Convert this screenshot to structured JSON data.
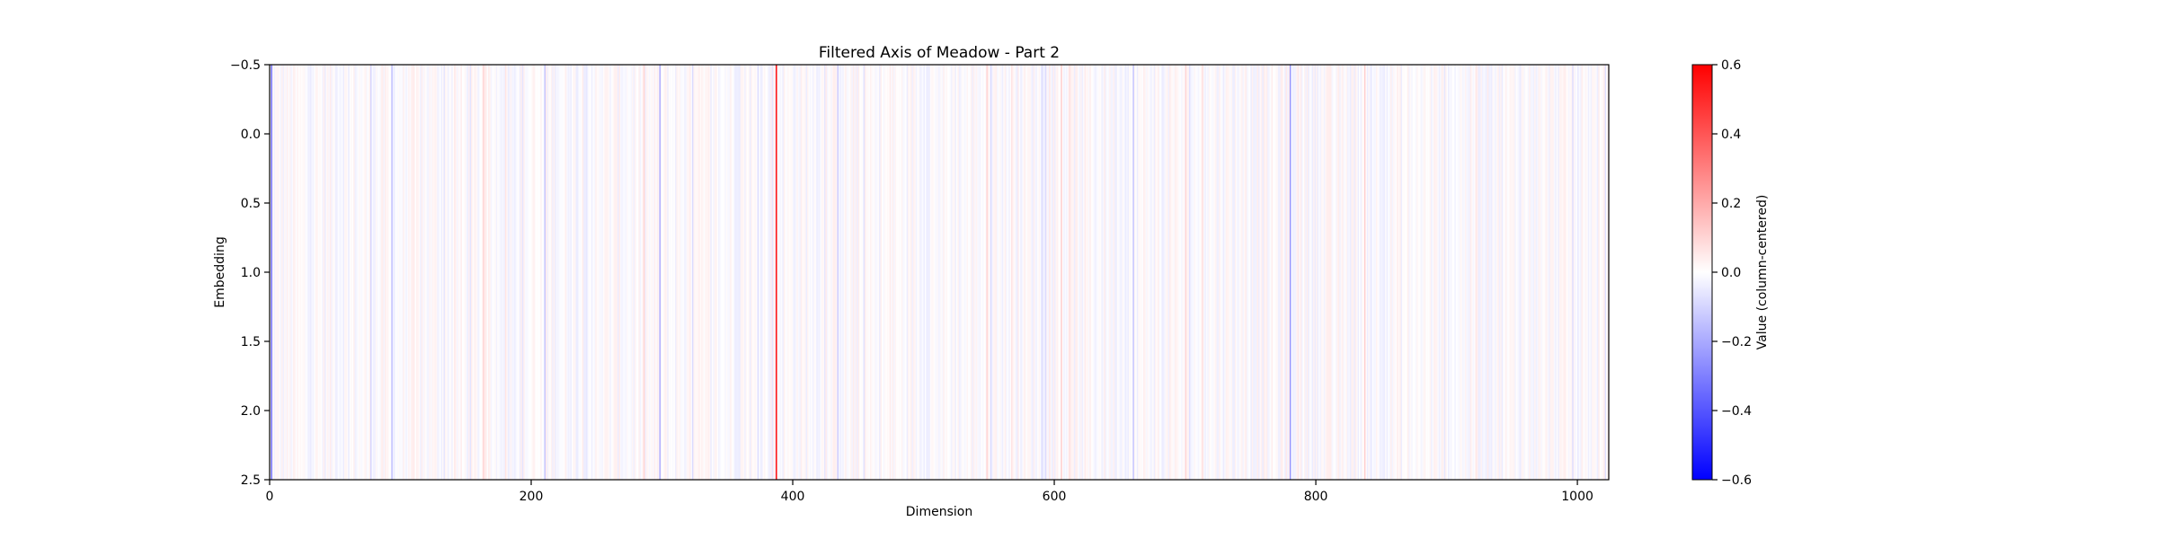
{
  "chart_data": {
    "type": "heatmap",
    "title": "Filtered Axis of Meadow - Part 2",
    "xlabel": "Dimension",
    "ylabel": "Embedding",
    "x_range": [
      0,
      1024
    ],
    "y_range": [
      -0.5,
      2.5
    ],
    "x_ticks": [
      0,
      200,
      400,
      600,
      800,
      1000
    ],
    "y_ticks": [
      -0.5,
      0.0,
      0.5,
      1.0,
      1.5,
      2.0,
      2.5
    ],
    "y_tick_labels": [
      "−0.5",
      "0.0",
      "0.5",
      "1.0",
      "1.5",
      "2.0",
      "2.5"
    ],
    "rows": 3,
    "columns": 1024,
    "colormap": {
      "low": "#0000ff",
      "mid": "#ffffff",
      "high": "#ff0000"
    },
    "value_range": [
      -0.6,
      0.6
    ],
    "notable_columns": [
      {
        "dimension": 387,
        "value": 0.6
      },
      {
        "dimension": 1,
        "value": -0.35
      },
      {
        "dimension": 298,
        "value": -0.2
      },
      {
        "dimension": 780,
        "value": -0.25
      },
      {
        "dimension": 93,
        "value": -0.15
      },
      {
        "dimension": 210,
        "value": -0.14
      },
      {
        "dimension": 660,
        "value": -0.14
      },
      {
        "dimension": 605,
        "value": 0.12
      },
      {
        "dimension": 837,
        "value": 0.12
      },
      {
        "dimension": 163,
        "value": 0.1
      },
      {
        "dimension": 434,
        "value": -0.12
      },
      {
        "dimension": 548,
        "value": 0.1
      },
      {
        "dimension": 700,
        "value": 0.1
      },
      {
        "dimension": 77,
        "value": -0.1
      },
      {
        "dimension": 996,
        "value": -0.08
      }
    ],
    "colorbar": {
      "label": "Value (column-centered)",
      "ticks": [
        0.6,
        0.4,
        0.2,
        0.0,
        -0.2,
        -0.4,
        -0.6
      ],
      "tick_labels": [
        "0.6",
        "0.4",
        "0.2",
        "0.0",
        "−0.2",
        "−0.4",
        "−0.6"
      ]
    }
  }
}
